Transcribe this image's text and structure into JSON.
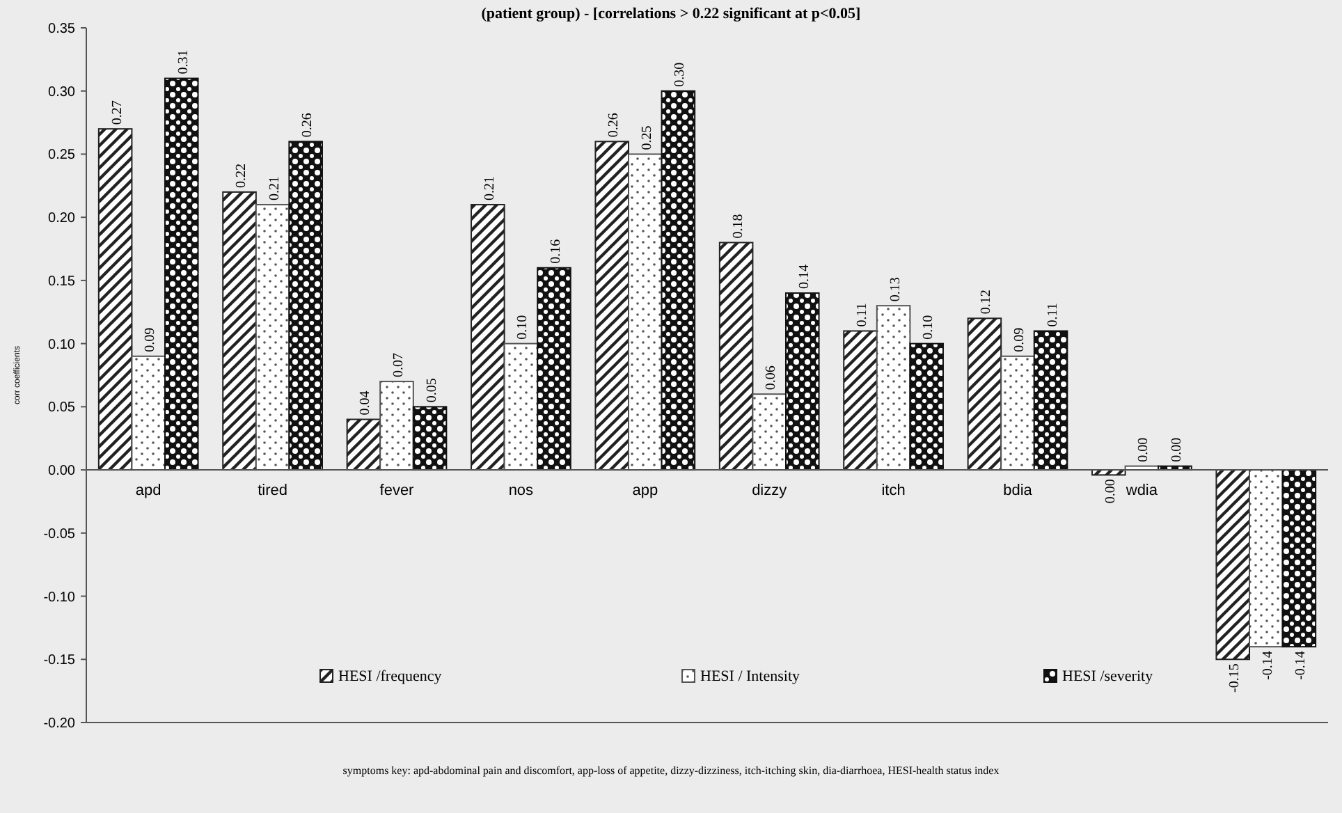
{
  "chart_data": {
    "type": "bar",
    "title": "(patient group) - [correlations > 0.22 significant at p<0.05]",
    "categories": [
      "apd",
      "tired",
      "fever",
      "nos",
      "app",
      "dizzy",
      "itch",
      "bdia",
      "wdia",
      null
    ],
    "series": [
      {
        "name": "HESI /frequency",
        "color": "#222222",
        "values": [
          0.27,
          0.22,
          0.04,
          0.21,
          0.26,
          0.18,
          0.11,
          0.12,
          -0.004,
          -0.15
        ],
        "value_labels": [
          "0.27",
          "0.22",
          "0.04",
          "0.21",
          "0.26",
          "0.18",
          "0.11",
          "0.12",
          "0.00",
          "-0.15"
        ]
      },
      {
        "name": "HESI / Intensity",
        "color": "#555555",
        "values": [
          0.09,
          0.21,
          0.07,
          0.1,
          0.25,
          0.06,
          0.13,
          0.09,
          0.003,
          -0.14
        ],
        "value_labels": [
          "0.09",
          "0.21",
          "0.07",
          "0.10",
          "0.25",
          "0.06",
          "0.13",
          "0.09",
          "0.00",
          "-0.14"
        ]
      },
      {
        "name": "HESI /severity",
        "color": "#111111",
        "values": [
          0.31,
          0.26,
          0.05,
          0.16,
          0.3,
          0.14,
          0.1,
          0.11,
          0.003,
          -0.14
        ],
        "value_labels": [
          "0.31",
          "0.26",
          "0.05",
          "0.16",
          "0.30",
          "0.14",
          "0.10",
          "0.11",
          "0.00",
          "-0.14"
        ]
      }
    ],
    "ylim": [
      -0.2,
      0.35
    ],
    "yticks": [
      {
        "value": -0.2,
        "label": "-0.20"
      },
      {
        "value": -0.15,
        "label": "-0.15"
      },
      {
        "value": -0.1,
        "label": "-0.10"
      },
      {
        "value": -0.05,
        "label": "-0.05"
      },
      {
        "value": 0,
        "label": "0.00"
      },
      {
        "value": 0.05,
        "label": "0.05"
      },
      {
        "value": 0.1,
        "label": "0.10"
      },
      {
        "value": 0.15,
        "label": "0.15"
      },
      {
        "value": 0.2,
        "label": "0.20"
      },
      {
        "value": 0.25,
        "label": "0.25"
      },
      {
        "value": 0.3,
        "label": "0.30"
      },
      {
        "value": 0.35,
        "label": "0.35"
      }
    ],
    "ylabel": "corr coefficients",
    "legend": "bottom",
    "grid": false,
    "annotations": [
      "symptoms key: apd-abdominal pain and discomfort, app-loss of appetite, dizzy-dizziness, itch-itching skin, dia-diarrhoea, HESI-health status index"
    ]
  }
}
